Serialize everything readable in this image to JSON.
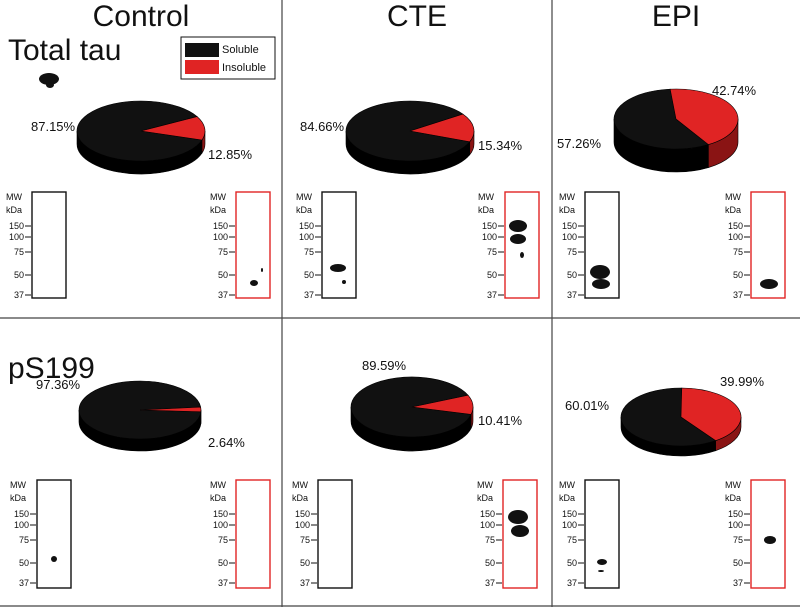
{
  "figure": {
    "columns": [
      "Control",
      "CTE",
      "EPI"
    ],
    "rows": [
      "Total tau",
      "pS199"
    ],
    "legend": [
      {
        "label": "Soluble",
        "color": "#111111"
      },
      {
        "label": "Insoluble",
        "color": "#e02424"
      }
    ],
    "blot": {
      "mw_header": [
        "MW",
        "kDa"
      ],
      "mw_markers": [
        "150",
        "100",
        "75",
        "50",
        "37"
      ],
      "soluble_frame_color": "#111111",
      "insoluble_frame_color": "#e02424"
    }
  },
  "chart_data": [
    {
      "type": "pie",
      "row": "Total tau",
      "column": "Control",
      "labels": [
        "Soluble",
        "Insoluble"
      ],
      "values": [
        87.15,
        12.85
      ],
      "value_labels": [
        "87.15%",
        "12.85%"
      ]
    },
    {
      "type": "pie",
      "row": "Total tau",
      "column": "CTE",
      "labels": [
        "Soluble",
        "Insoluble"
      ],
      "values": [
        84.66,
        15.34
      ],
      "value_labels": [
        "84.66%",
        "15.34%"
      ]
    },
    {
      "type": "pie",
      "row": "Total tau",
      "column": "EPI",
      "labels": [
        "Soluble",
        "Insoluble"
      ],
      "values": [
        57.26,
        42.74
      ],
      "value_labels": [
        "57.26%",
        "42.74%"
      ]
    },
    {
      "type": "pie",
      "row": "pS199",
      "column": "Control",
      "labels": [
        "Soluble",
        "Insoluble"
      ],
      "values": [
        97.36,
        2.64
      ],
      "value_labels": [
        "97.36%",
        "2.64%"
      ]
    },
    {
      "type": "pie",
      "row": "pS199",
      "column": "CTE",
      "labels": [
        "Soluble",
        "Insoluble"
      ],
      "values": [
        89.59,
        10.41
      ],
      "value_labels": [
        "89.59%",
        "10.41%"
      ]
    },
    {
      "type": "pie",
      "row": "pS199",
      "column": "EPI",
      "labels": [
        "Soluble",
        "Insoluble"
      ],
      "values": [
        60.01,
        39.99
      ],
      "value_labels": [
        "60.01%",
        "39.99%"
      ]
    }
  ]
}
